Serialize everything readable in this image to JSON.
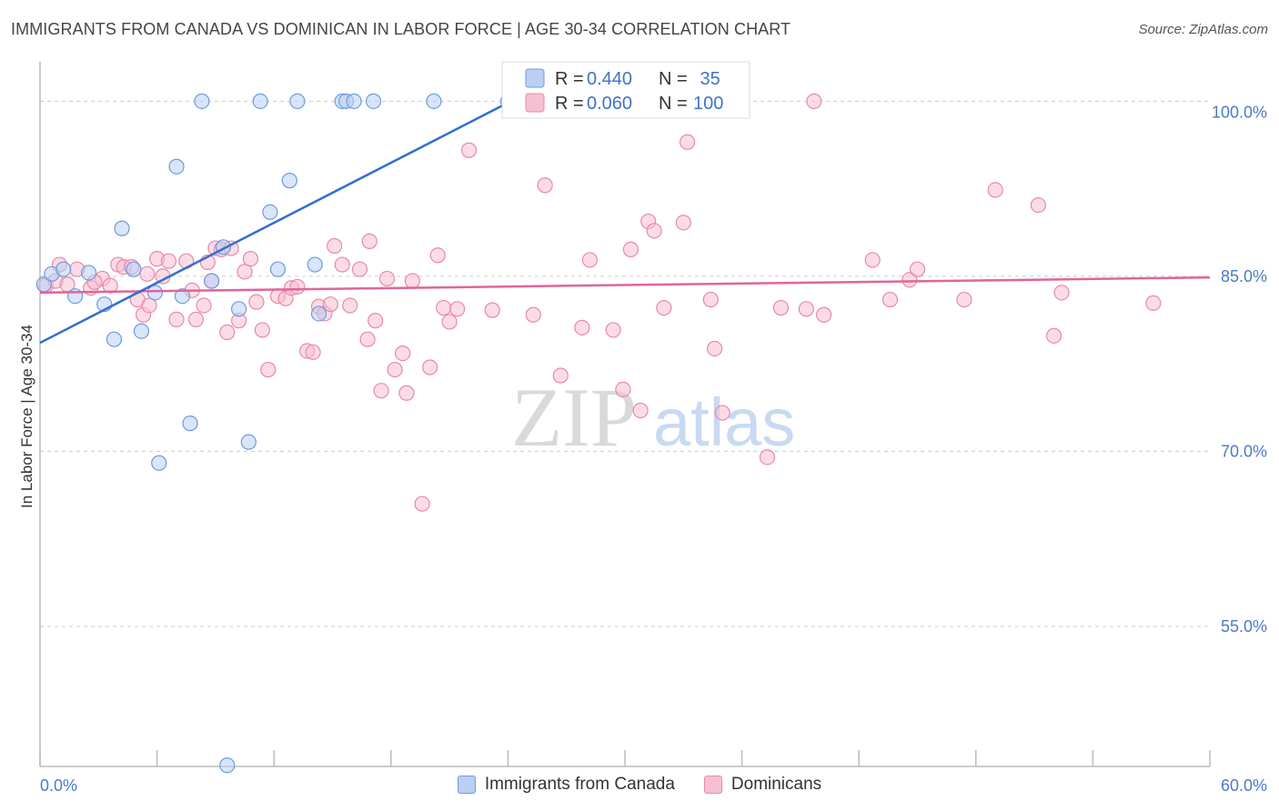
{
  "title": "IMMIGRANTS FROM CANADA VS DOMINICAN IN LABOR FORCE | AGE 30-34 CORRELATION CHART",
  "source": "Source: ZipAtlas.com",
  "watermark": {
    "zip": "ZIP",
    "atlas": "atlas"
  },
  "legend_box": {
    "rows": [
      {
        "r_label": "R = ",
        "r_value": "0.440",
        "n_label": "N = ",
        "n_value": " 35"
      },
      {
        "r_label": "R = ",
        "r_value": "0.060",
        "n_label": "N = ",
        "n_value": "100"
      }
    ]
  },
  "colors": {
    "blue_fill": "#b9d0f3",
    "blue_stroke": "#6e9bdc",
    "blue_line": "#2f6fd0",
    "pink_fill": "#f7c0d2",
    "pink_stroke": "#e889a8",
    "pink_line": "#e0649a",
    "tick_text": "#4a7ac9",
    "grid": "#cccccc"
  },
  "chart_data": {
    "type": "scatter",
    "xlabel": "",
    "ylabel": "In Labor Force | Age 30-34",
    "xlim": [
      0,
      60
    ],
    "ylim": [
      43,
      104
    ],
    "x_tick_labels": [
      {
        "value": 0,
        "label": "0.0%"
      },
      {
        "value": 60,
        "label": "60.0%"
      }
    ],
    "y_ticks": [
      {
        "value": 100,
        "label": "100.0%"
      },
      {
        "value": 85,
        "label": "85.0%"
      },
      {
        "value": 70,
        "label": "70.0%"
      },
      {
        "value": 55,
        "label": "55.0%"
      }
    ],
    "grid": "horizontal dashed",
    "legend_placement": "bottom",
    "series": [
      {
        "name": "Immigrants from Canada",
        "trend": {
          "x": [
            0,
            24.5
          ],
          "y": [
            79.3,
            100.3
          ]
        },
        "points": [
          [
            0.2,
            84.3
          ],
          [
            0.6,
            85.2
          ],
          [
            1.2,
            85.6
          ],
          [
            1.8,
            83.3
          ],
          [
            2.5,
            85.3
          ],
          [
            3.3,
            82.6
          ],
          [
            3.8,
            79.6
          ],
          [
            4.2,
            89.1
          ],
          [
            4.8,
            85.6
          ],
          [
            5.2,
            80.3
          ],
          [
            5.9,
            83.6
          ],
          [
            6.1,
            69.0
          ],
          [
            7.0,
            94.4
          ],
          [
            7.3,
            83.3
          ],
          [
            7.7,
            72.4
          ],
          [
            8.3,
            100.0
          ],
          [
            8.8,
            84.6
          ],
          [
            9.4,
            87.5
          ],
          [
            9.6,
            43.1
          ],
          [
            10.2,
            82.2
          ],
          [
            10.7,
            70.8
          ],
          [
            11.3,
            100.0
          ],
          [
            11.8,
            90.5
          ],
          [
            12.2,
            85.6
          ],
          [
            12.8,
            93.2
          ],
          [
            13.2,
            100.0
          ],
          [
            14.1,
            86.0
          ],
          [
            14.3,
            81.8
          ],
          [
            15.5,
            100.0
          ],
          [
            15.7,
            100.0
          ],
          [
            16.1,
            100.0
          ],
          [
            17.1,
            100.0
          ],
          [
            20.2,
            100.0
          ],
          [
            24.0,
            100.0
          ],
          [
            28.8,
            100.0
          ]
        ]
      },
      {
        "name": "Dominicans",
        "trend": {
          "x": [
            0,
            60
          ],
          "y": [
            83.6,
            84.9
          ]
        },
        "points": [
          [
            0.3,
            84.2
          ],
          [
            0.8,
            84.6
          ],
          [
            1.4,
            84.3
          ],
          [
            1.9,
            85.6
          ],
          [
            2.6,
            84.0
          ],
          [
            3.2,
            84.8
          ],
          [
            3.6,
            84.2
          ],
          [
            4.0,
            86.0
          ],
          [
            4.3,
            85.8
          ],
          [
            4.7,
            85.8
          ],
          [
            5.0,
            83.0
          ],
          [
            5.3,
            81.7
          ],
          [
            5.6,
            82.5
          ],
          [
            6.0,
            86.5
          ],
          [
            6.3,
            85.0
          ],
          [
            6.6,
            86.3
          ],
          [
            7.0,
            81.3
          ],
          [
            7.5,
            86.3
          ],
          [
            7.8,
            83.8
          ],
          [
            8.0,
            81.3
          ],
          [
            8.4,
            82.5
          ],
          [
            8.8,
            84.6
          ],
          [
            9.0,
            87.4
          ],
          [
            9.3,
            87.3
          ],
          [
            9.6,
            80.2
          ],
          [
            9.8,
            87.4
          ],
          [
            10.2,
            81.2
          ],
          [
            10.5,
            85.4
          ],
          [
            10.8,
            86.5
          ],
          [
            11.1,
            82.8
          ],
          [
            11.4,
            80.4
          ],
          [
            11.7,
            77.0
          ],
          [
            12.2,
            83.3
          ],
          [
            12.6,
            83.1
          ],
          [
            12.9,
            84.0
          ],
          [
            13.2,
            84.1
          ],
          [
            13.7,
            78.6
          ],
          [
            14.0,
            78.5
          ],
          [
            14.3,
            82.4
          ],
          [
            14.6,
            81.8
          ],
          [
            14.9,
            82.6
          ],
          [
            15.1,
            87.6
          ],
          [
            15.5,
            86.0
          ],
          [
            15.9,
            82.5
          ],
          [
            16.4,
            85.6
          ],
          [
            16.8,
            79.6
          ],
          [
            17.2,
            81.2
          ],
          [
            17.5,
            75.2
          ],
          [
            17.8,
            84.8
          ],
          [
            18.2,
            77.0
          ],
          [
            18.6,
            78.4
          ],
          [
            18.8,
            75.0
          ],
          [
            19.1,
            84.6
          ],
          [
            19.6,
            65.5
          ],
          [
            20.0,
            77.2
          ],
          [
            20.4,
            86.8
          ],
          [
            20.7,
            82.3
          ],
          [
            21.0,
            81.1
          ],
          [
            21.4,
            82.2
          ],
          [
            22.0,
            95.8
          ],
          [
            23.2,
            82.1
          ],
          [
            24.2,
            100.0
          ],
          [
            25.3,
            81.7
          ],
          [
            25.9,
            92.8
          ],
          [
            26.7,
            76.5
          ],
          [
            27.8,
            80.6
          ],
          [
            28.2,
            86.4
          ],
          [
            29.4,
            80.4
          ],
          [
            29.9,
            75.3
          ],
          [
            30.3,
            87.3
          ],
          [
            30.8,
            73.5
          ],
          [
            31.2,
            89.7
          ],
          [
            31.5,
            88.9
          ],
          [
            32.0,
            82.3
          ],
          [
            33.0,
            89.6
          ],
          [
            33.2,
            96.5
          ],
          [
            34.4,
            83.0
          ],
          [
            34.6,
            78.8
          ],
          [
            35.0,
            73.3
          ],
          [
            37.3,
            69.5
          ],
          [
            38.0,
            82.3
          ],
          [
            39.3,
            82.2
          ],
          [
            39.7,
            100.0
          ],
          [
            40.2,
            81.7
          ],
          [
            42.7,
            86.4
          ],
          [
            43.6,
            83.0
          ],
          [
            44.6,
            84.7
          ],
          [
            45.0,
            85.6
          ],
          [
            47.4,
            83.0
          ],
          [
            49.0,
            92.4
          ],
          [
            51.2,
            91.1
          ],
          [
            52.0,
            79.9
          ],
          [
            52.4,
            83.6
          ],
          [
            57.1,
            82.7
          ],
          [
            1.0,
            86.0
          ],
          [
            2.8,
            84.5
          ],
          [
            5.5,
            85.2
          ],
          [
            8.6,
            86.2
          ],
          [
            16.9,
            88.0
          ],
          [
            25.0,
            100.0
          ]
        ]
      }
    ]
  }
}
